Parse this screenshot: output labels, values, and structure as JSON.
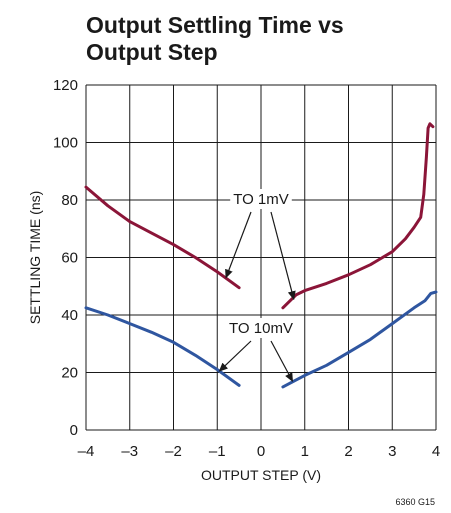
{
  "chart_data": {
    "type": "line",
    "title_lines": [
      "Output Settling Time vs",
      "Output Step"
    ],
    "xlabel": "OUTPUT STEP (V)",
    "ylabel": "SETTLING TIME (ns)",
    "xlim": [
      -4,
      4
    ],
    "ylim": [
      0,
      120
    ],
    "x_ticks": [
      -4,
      -3,
      -2,
      -1,
      0,
      1,
      2,
      3,
      4
    ],
    "y_ticks": [
      0,
      20,
      40,
      60,
      80,
      100,
      120
    ],
    "x_tick_labels": [
      "–4",
      "–3",
      "–2",
      "–1",
      "0",
      "1",
      "2",
      "3",
      "4"
    ],
    "y_tick_labels": [
      "0",
      "20",
      "40",
      "60",
      "80",
      "100",
      "120"
    ],
    "grid": true,
    "series": [
      {
        "color": "#8b1538",
        "segments": [
          [
            [
              -4,
              84.5
            ],
            [
              -3.5,
              78
            ],
            [
              -3,
              72.5
            ],
            [
              -2.5,
              68.5
            ],
            [
              -2,
              64.5
            ],
            [
              -1.5,
              60
            ],
            [
              -1,
              55
            ],
            [
              -0.5,
              49.5
            ]
          ],
          [
            [
              0.5,
              42.5
            ],
            [
              0.8,
              47
            ],
            [
              1,
              48.5
            ],
            [
              1.5,
              51
            ],
            [
              2,
              54
            ],
            [
              2.5,
              57.5
            ],
            [
              3,
              62
            ],
            [
              3.3,
              66.5
            ],
            [
              3.5,
              70.5
            ],
            [
              3.65,
              74
            ],
            [
              3.72,
              82
            ],
            [
              3.78,
              95
            ],
            [
              3.82,
              105
            ],
            [
              3.86,
              106.5
            ],
            [
              3.93,
              105.5
            ]
          ]
        ]
      },
      {
        "color": "#2f56a0",
        "segments": [
          [
            [
              -4,
              42.5
            ],
            [
              -3.5,
              40
            ],
            [
              -3,
              37
            ],
            [
              -2.5,
              34
            ],
            [
              -2,
              30.5
            ],
            [
              -1.5,
              26
            ],
            [
              -1,
              21
            ],
            [
              -0.5,
              15.5
            ]
          ],
          [
            [
              0.5,
              15
            ],
            [
              1,
              19
            ],
            [
              1.5,
              22.5
            ],
            [
              2,
              27
            ],
            [
              2.5,
              31.5
            ],
            [
              3,
              37
            ],
            [
              3.5,
              42.5
            ],
            [
              3.75,
              45
            ],
            [
              3.88,
              47.5
            ],
            [
              4,
              48
            ]
          ]
        ]
      }
    ],
    "annotations": [
      {
        "text": "TO 1mV",
        "arrows_to": [
          [
            -0.8,
            53
          ],
          [
            0.75,
            45.5
          ]
        ]
      },
      {
        "text": "TO 10mV",
        "arrows_to": [
          [
            -0.95,
            20.5
          ],
          [
            0.72,
            17
          ]
        ]
      }
    ],
    "figure_id": "6360 G15"
  }
}
